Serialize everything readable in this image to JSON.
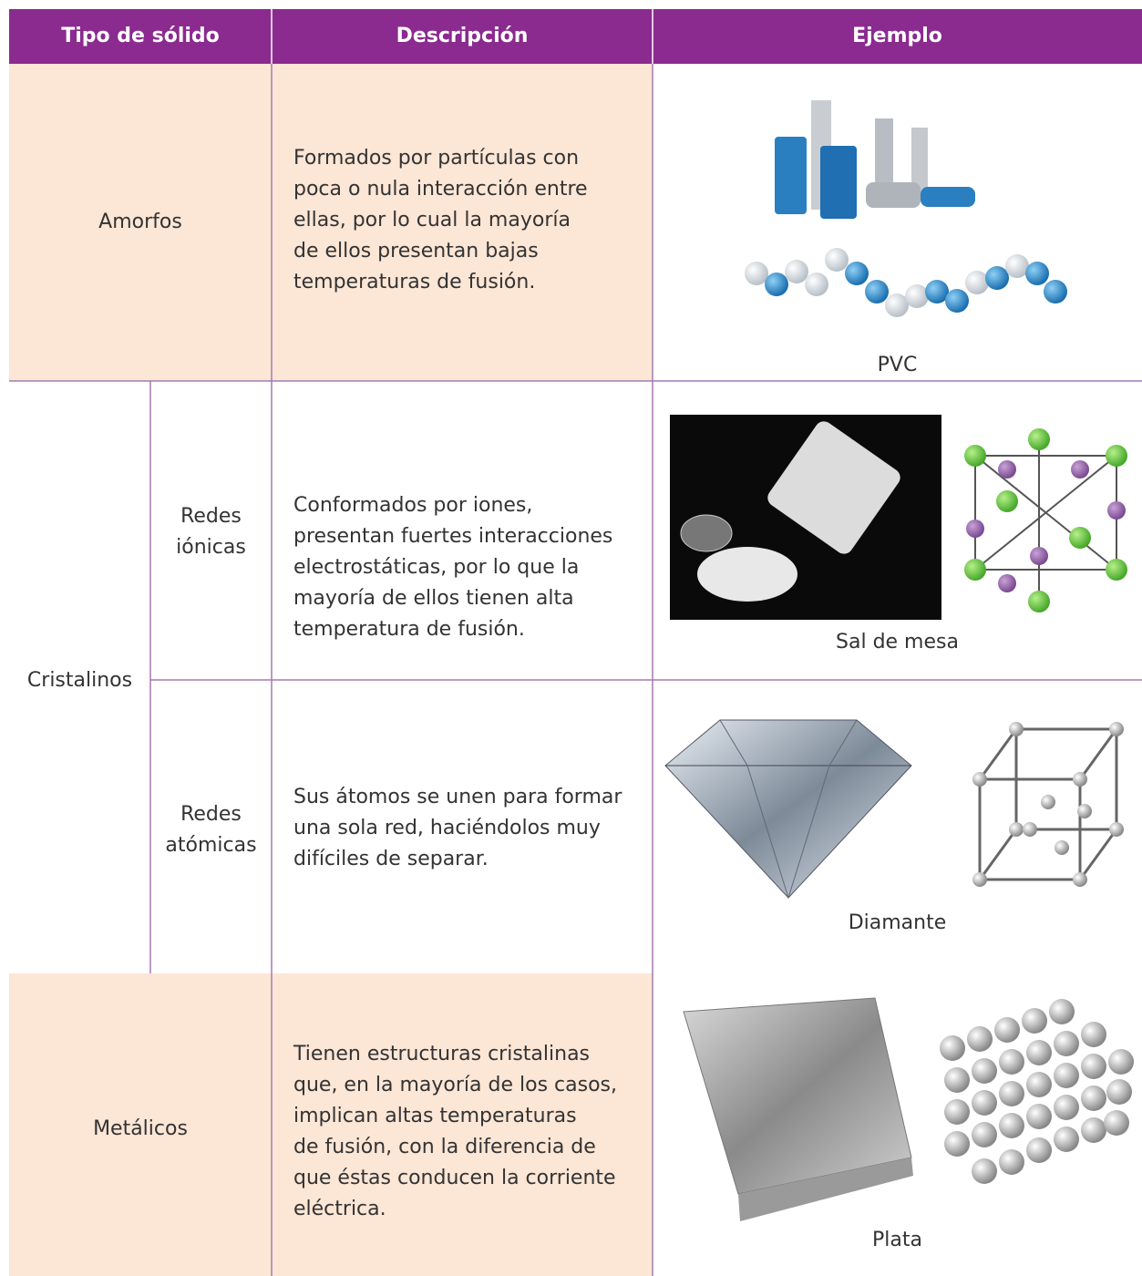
{
  "header": {
    "columns": [
      "Tipo de sólido",
      "Descripción",
      "Ejemplo"
    ]
  },
  "rows": [
    {
      "type": "Amorfos",
      "description": [
        "Formados por partículas con",
        "poca o nula interacción entre",
        "ellas, por lo cual la mayoría",
        "de ellos presentan bajas",
        "temperaturas de fusión."
      ],
      "example": "PVC"
    },
    {
      "type": "Cristalinos",
      "subtype": "Redes iónicas",
      "description": [
        "Conformados por iones,",
        "presentan fuertes interacciones",
        "electrostáticas, por lo que la",
        "mayoría de ellos tienen alta",
        "temperatura de fusión."
      ],
      "example": "Sal de mesa"
    },
    {
      "subtype": "Redes atómicas",
      "description": [
        "Sus átomos se unen para formar",
        "una sola red, haciéndolos muy",
        "difíciles de separar."
      ],
      "example": "Diamante"
    },
    {
      "type": "Metálicos",
      "description": [
        "Tienen estructuras cristalinas",
        "que, en la mayoría de los casos,",
        "implican altas temperaturas",
        "de fusión, con la diferencia de",
        "que éstas conducen la corriente",
        "eléctrica."
      ],
      "example": "Plata"
    }
  ]
}
